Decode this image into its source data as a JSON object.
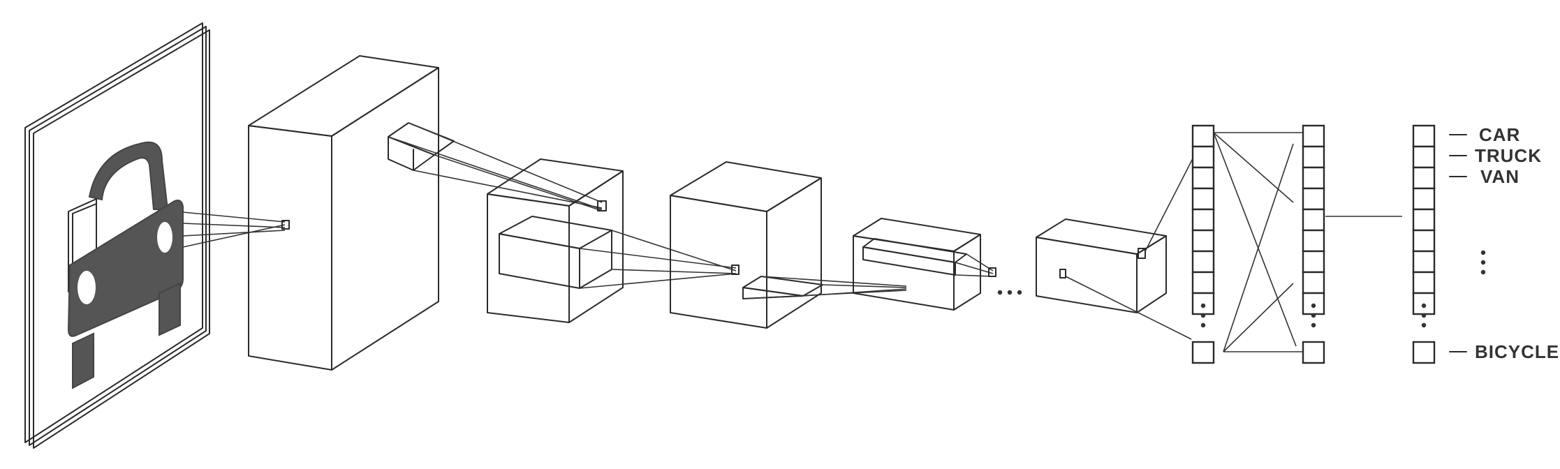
{
  "labels": {
    "car": "CAR",
    "truck": "TRUCK",
    "van": "VAN",
    "bicycle": "BICYCLE"
  },
  "colors": {
    "stroke": "#2a2a2a",
    "silhouette": "#555555",
    "text": "#333333",
    "background": "#ffffff"
  }
}
